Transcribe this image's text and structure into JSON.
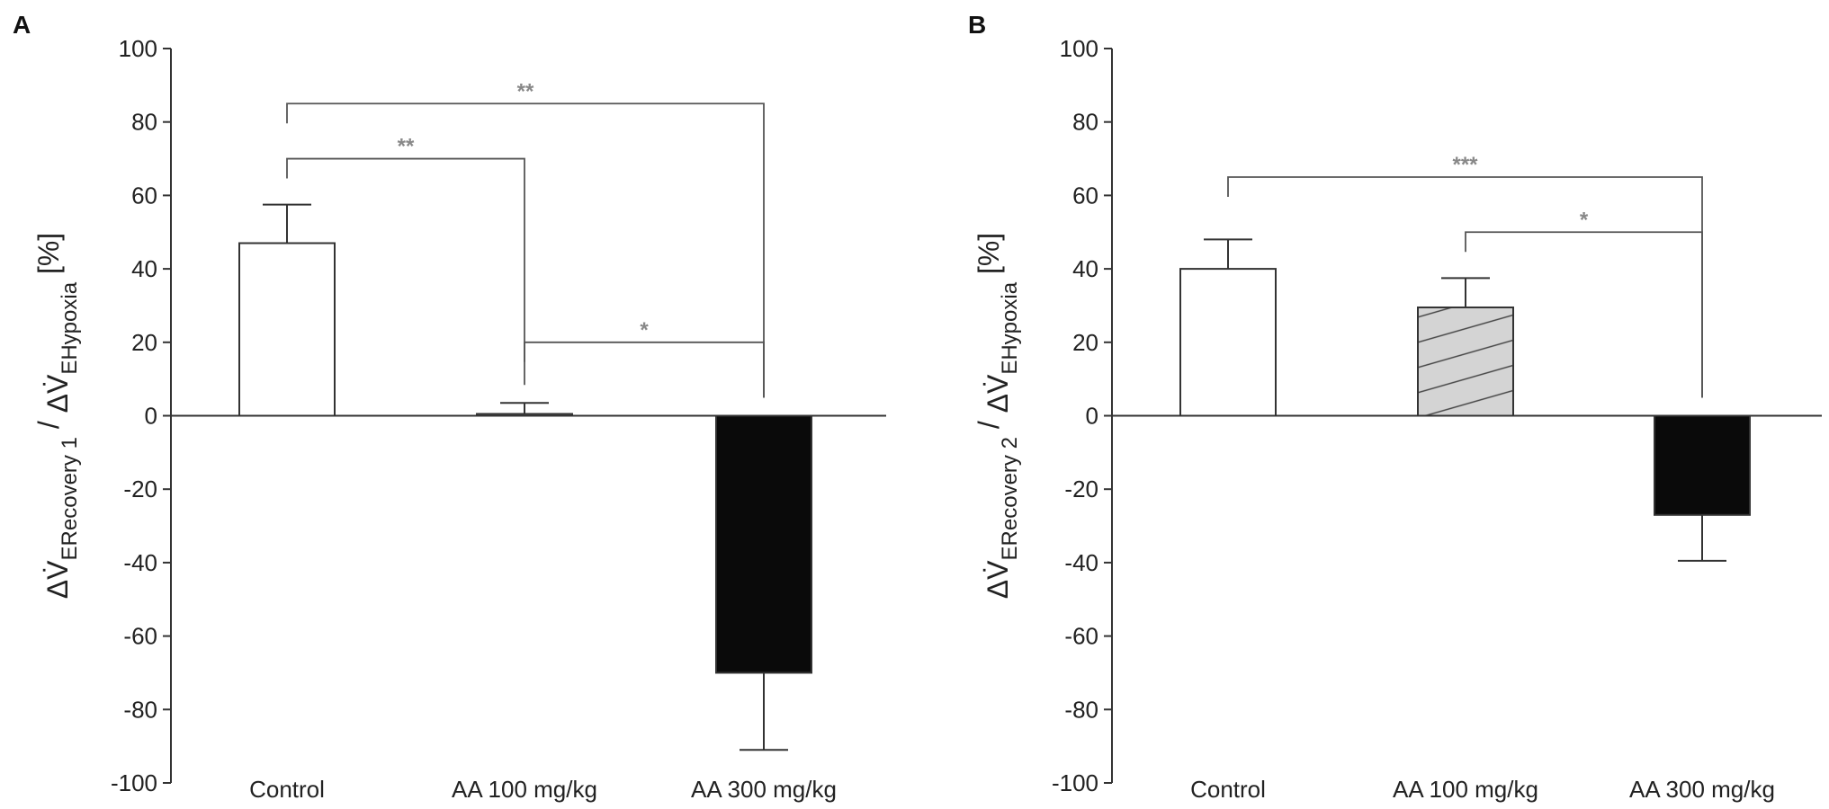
{
  "chart_data": [
    {
      "panel_label": "A",
      "type": "bar",
      "categories": [
        "Control",
        "AA 100 mg/kg",
        "AA 300 mg/kg"
      ],
      "values": [
        47,
        0.5,
        -70
      ],
      "errors": [
        10.5,
        3,
        21
      ],
      "fills": [
        "white",
        "white",
        "black"
      ],
      "ylim": [
        -100,
        100
      ],
      "yticks": [
        100,
        80,
        60,
        40,
        20,
        0,
        -20,
        -40,
        -60,
        -80,
        -100
      ],
      "ylabel": {
        "part1_main": "ΔV̇",
        "part1_sub_e": "E",
        "part1_sub": "Recovery 1",
        "separator": " / ",
        "part2_main": "ΔV̇",
        "part2_sub_e": "E",
        "part2_sub": "Hypoxia",
        "unit": " [%]"
      },
      "significance": [
        {
          "from": 0,
          "to": 2,
          "label": "**",
          "y": 85
        },
        {
          "from": 0,
          "to": 1,
          "label": "**",
          "y": 70
        },
        {
          "from": 1,
          "to": 2,
          "label": "*",
          "y": 20
        }
      ]
    },
    {
      "panel_label": "B",
      "type": "bar",
      "categories": [
        "Control",
        "AA 100 mg/kg",
        "AA 300 mg/kg"
      ],
      "values": [
        40,
        29.5,
        -27
      ],
      "errors": [
        8,
        8,
        12.5
      ],
      "fills": [
        "white",
        "hatched",
        "black"
      ],
      "ylim": [
        -100,
        100
      ],
      "yticks": [
        100,
        80,
        60,
        40,
        20,
        0,
        -20,
        -40,
        -60,
        -80,
        -100
      ],
      "ylabel": {
        "part1_main": "ΔV̇",
        "part1_sub_e": "E",
        "part1_sub": "Recovery 2",
        "separator": " / ",
        "part2_main": "ΔV̇",
        "part2_sub_e": "E",
        "part2_sub": "Hypoxia",
        "unit": " [%]"
      },
      "significance": [
        {
          "from": 0,
          "to": 2,
          "label": "***",
          "y": 65
        },
        {
          "from": 1,
          "to": 2,
          "label": "*",
          "y": 50
        }
      ]
    }
  ],
  "colors": {
    "axis": "#333333",
    "bar_black": "#0a0a0a",
    "hatch_fill": "#d4d4d4",
    "sig_text": "#888888"
  }
}
